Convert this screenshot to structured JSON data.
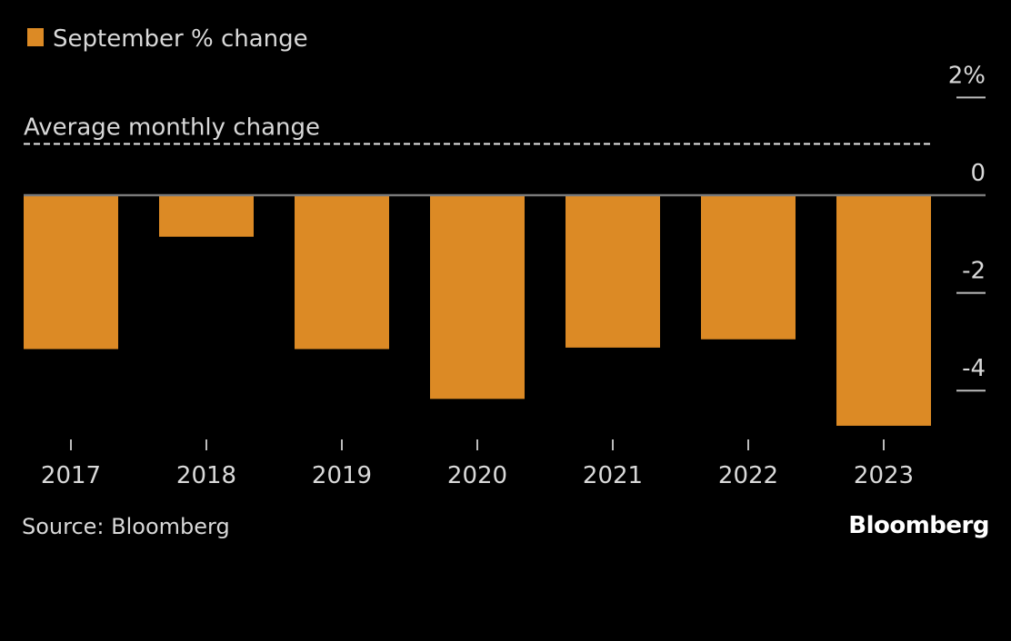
{
  "chart_data": {
    "type": "bar",
    "legend": "September % change",
    "categories": [
      "2017",
      "2018",
      "2019",
      "2020",
      "2021",
      "2022",
      "2023"
    ],
    "values": [
      -3.15,
      -0.85,
      -3.15,
      -4.17,
      -3.12,
      -2.95,
      -4.72
    ],
    "reference_line": {
      "label": "Average monthly change",
      "value": 1.05
    },
    "y_ticks": [
      2,
      0,
      -2,
      -4
    ],
    "y_tick_labels": [
      "2%",
      "0",
      "-2",
      "-4"
    ],
    "ylim": [
      -4.9,
      2.3
    ],
    "grid": false,
    "legend_position": "top-left",
    "bar_color": "#dc8a25"
  },
  "footer": {
    "source": "Source: Bloomberg",
    "brand": "Bloomberg"
  }
}
